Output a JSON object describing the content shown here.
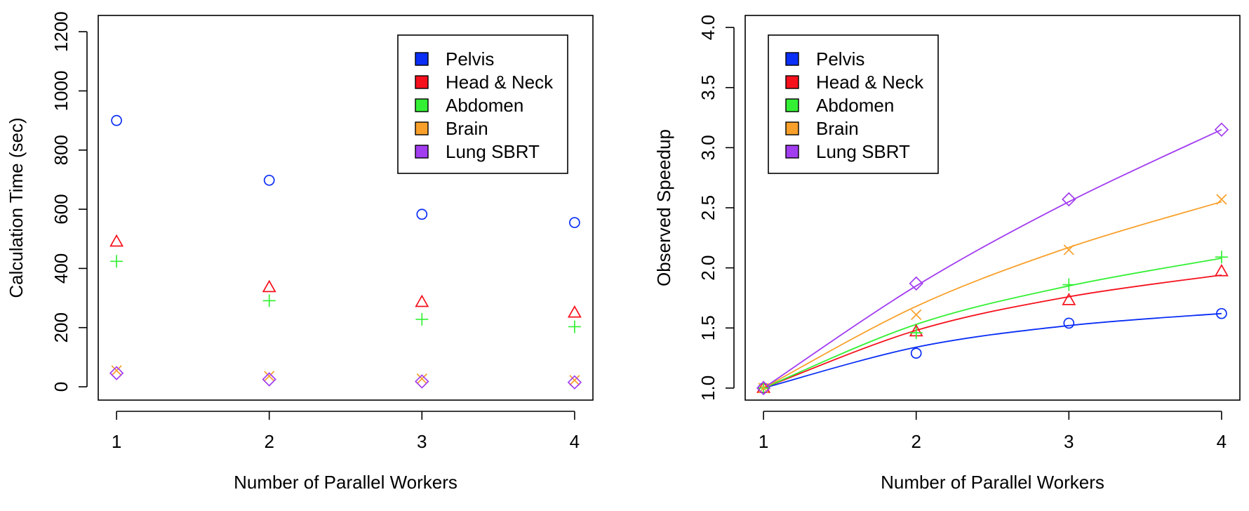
{
  "chart_data": [
    {
      "type": "scatter",
      "xlabel": "Number of Parallel Workers",
      "ylabel": "Calculation Time (sec)",
      "x": [
        1,
        2,
        3,
        4
      ],
      "xlim": [
        0.88,
        4.12
      ],
      "ylim": [
        -45,
        1255
      ],
      "xticks": [
        "1",
        "2",
        "3",
        "4"
      ],
      "yticks": [
        "0",
        "200",
        "400",
        "600",
        "800",
        "1000",
        "1200"
      ],
      "legend_position": "top-right",
      "series": [
        {
          "name": "Pelvis",
          "color": "#0a2ef5",
          "marker": "circle",
          "values": [
            900,
            698,
            583,
            555
          ]
        },
        {
          "name": "Head & Neck",
          "color": "#f5101c",
          "marker": "triangle",
          "values": [
            490,
            336,
            286,
            250
          ]
        },
        {
          "name": "Abdomen",
          "color": "#34f034",
          "marker": "plus",
          "values": [
            424,
            291,
            228,
            203
          ]
        },
        {
          "name": "Brain",
          "color": "#f8a02a",
          "marker": "x",
          "values": [
            55,
            36,
            27,
            22
          ]
        },
        {
          "name": "Lung SBRT",
          "color": "#a23df0",
          "marker": "diamond",
          "values": [
            46,
            25,
            18,
            15
          ]
        }
      ]
    },
    {
      "type": "scatter",
      "xlabel": "Number of Parallel Workers",
      "ylabel": "Observed Speedup",
      "x": [
        1,
        2,
        3,
        4
      ],
      "xlim": [
        0.88,
        4.12
      ],
      "ylim": [
        0.9,
        4.1
      ],
      "xticks": [
        "1",
        "2",
        "3",
        "4"
      ],
      "yticks": [
        "1.0",
        "1.5",
        "2.0",
        "2.5",
        "3.0",
        "3.5",
        "4.0"
      ],
      "legend_position": "top-left",
      "fitted_lines": true,
      "series": [
        {
          "name": "Pelvis",
          "color": "#0a2ef5",
          "marker": "circle",
          "values": [
            1.0,
            1.29,
            1.54,
            1.62
          ],
          "fit": [
            1.0,
            1.34,
            1.52,
            1.62
          ]
        },
        {
          "name": "Head & Neck",
          "color": "#f5101c",
          "marker": "triangle",
          "values": [
            1.0,
            1.47,
            1.73,
            1.97
          ],
          "fit": [
            1.0,
            1.48,
            1.76,
            1.94
          ]
        },
        {
          "name": "Abdomen",
          "color": "#34f034",
          "marker": "plus",
          "values": [
            1.0,
            1.46,
            1.86,
            2.09
          ],
          "fit": [
            1.0,
            1.53,
            1.85,
            2.08
          ]
        },
        {
          "name": "Brain",
          "color": "#f8a02a",
          "marker": "x",
          "values": [
            1.0,
            1.61,
            2.15,
            2.57
          ],
          "fit": [
            1.0,
            1.68,
            2.17,
            2.55
          ]
        },
        {
          "name": "Lung SBRT",
          "color": "#a23df0",
          "marker": "diamond",
          "values": [
            1.0,
            1.87,
            2.57,
            3.15
          ],
          "fit": [
            1.0,
            1.85,
            2.55,
            3.15
          ]
        }
      ]
    }
  ]
}
